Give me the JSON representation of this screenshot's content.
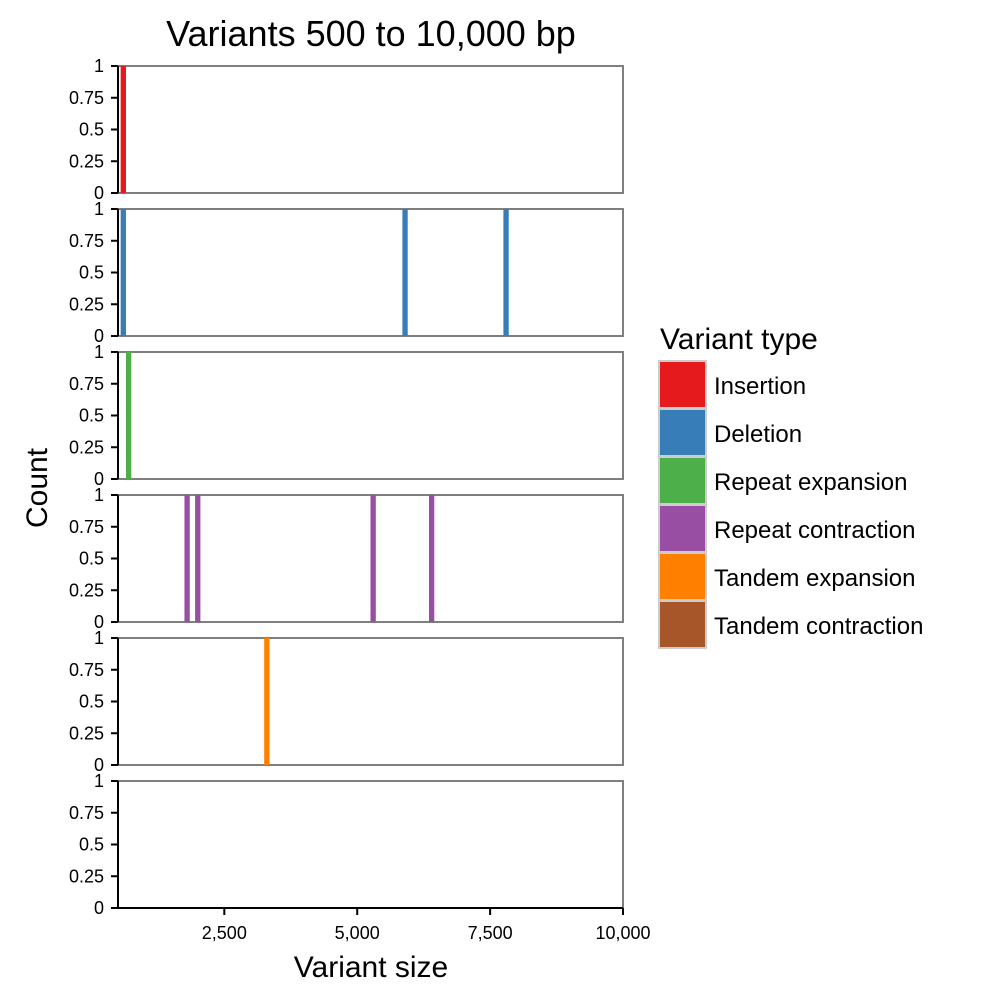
{
  "chart_data": {
    "type": "bar",
    "title": "Variants 500 to 10,000 bp",
    "xlabel": "Variant size",
    "ylabel": "Count",
    "xlim": [
      500,
      10000
    ],
    "ylim": [
      0,
      1
    ],
    "x_ticks": [
      2500,
      5000,
      7500,
      10000
    ],
    "x_tick_labels": [
      "2,500",
      "5,000",
      "7,500",
      "10,000"
    ],
    "y_ticks": [
      0,
      0.25,
      0.5,
      0.75,
      1
    ],
    "y_tick_labels": [
      "0",
      "0.25",
      "0.5",
      "0.75",
      "1"
    ],
    "bar_width": 100,
    "legend": {
      "title": "Variant type",
      "position": "right"
    },
    "series": [
      {
        "name": "Insertion",
        "color": "#E41A1C",
        "x": [
          600
        ],
        "values": [
          1
        ]
      },
      {
        "name": "Deletion",
        "color": "#377EB8",
        "x": [
          600,
          5900,
          7800
        ],
        "values": [
          1,
          1,
          1
        ]
      },
      {
        "name": "Repeat expansion",
        "color": "#4DAF4A",
        "x": [
          700
        ],
        "values": [
          1
        ]
      },
      {
        "name": "Repeat contraction",
        "color": "#984EA3",
        "x": [
          1800,
          2000,
          5300,
          6400
        ],
        "values": [
          1,
          1,
          1,
          1
        ]
      },
      {
        "name": "Tandem expansion",
        "color": "#FF7F00",
        "x": [
          3300
        ],
        "values": [
          1
        ]
      },
      {
        "name": "Tandem contraction",
        "color": "#A65628",
        "x": [],
        "values": []
      }
    ]
  }
}
